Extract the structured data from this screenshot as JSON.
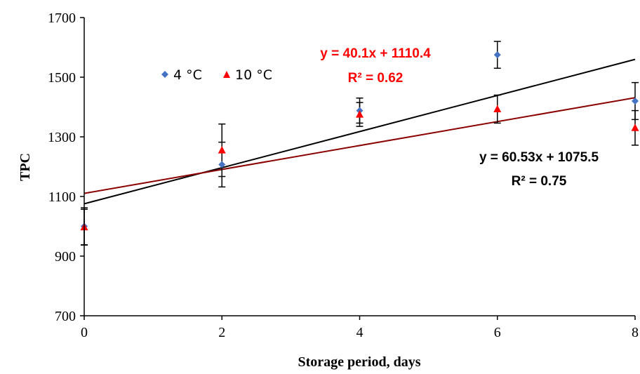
{
  "chart_data": {
    "type": "scatter",
    "xlabel": "Storage period, days",
    "ylabel": "TPC",
    "xlim": [
      0,
      8
    ],
    "ylim": [
      700,
      1700
    ],
    "x_ticks": [
      "0",
      "2",
      "4",
      "6",
      "8"
    ],
    "y_ticks": [
      "700",
      "900",
      "1100",
      "1300",
      "1500",
      "1700"
    ],
    "x_tick_values": [
      0,
      2,
      4,
      6,
      8
    ],
    "y_tick_values": [
      700,
      900,
      1100,
      1300,
      1500,
      1700
    ],
    "legend_position": "upper-left inside plot",
    "grid": false,
    "series": [
      {
        "name": "4 °C",
        "marker": "diamond",
        "color": "#4472C4",
        "x": [
          0,
          2,
          4,
          6,
          8
        ],
        "y": [
          1000,
          1207,
          1388,
          1575,
          1420
        ],
        "error": [
          62,
          75,
          42,
          45,
          62
        ]
      },
      {
        "name": "10 °C",
        "marker": "triangle",
        "color": "#FF0000",
        "x": [
          0,
          2,
          4,
          6,
          8
        ],
        "y": [
          997,
          1255,
          1375,
          1393,
          1330
        ],
        "error": [
          60,
          88,
          40,
          47,
          58
        ]
      }
    ],
    "trendlines": [
      {
        "series": "4 °C",
        "slope": 60.53,
        "intercept": 1075.5,
        "color": "#000000",
        "equation": "y = 60.53x + 1075.5",
        "r2": "R² = 0.75",
        "label_color": "#000000"
      },
      {
        "series": "10 °C",
        "slope": 40.1,
        "intercept": 1110.4,
        "color": "#8B0000",
        "equation": "y = 40.1x + 1110.4",
        "r2": "R² = 0.62",
        "label_color": "#FF0000"
      }
    ]
  }
}
